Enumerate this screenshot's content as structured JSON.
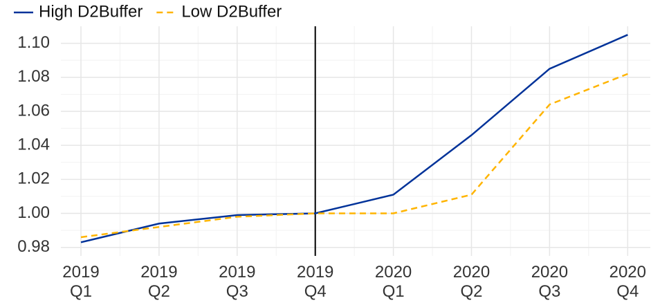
{
  "chart_data": {
    "type": "line",
    "categories": [
      "2019 Q1",
      "2019 Q2",
      "2019 Q3",
      "2019 Q4",
      "2020 Q1",
      "2020 Q2",
      "2020 Q3",
      "2020 Q4"
    ],
    "series": [
      {
        "name": "High D2Buffer",
        "color": "#003299",
        "dash": false,
        "values": [
          0.983,
          0.994,
          0.999,
          1.0,
          1.011,
          1.046,
          1.085,
          1.105
        ]
      },
      {
        "name": "Low D2Buffer",
        "color": "#ffb400",
        "dash": true,
        "values": [
          0.986,
          0.992,
          0.998,
          1.0,
          1.0,
          1.011,
          1.064,
          1.082
        ]
      }
    ],
    "ylim": [
      0.975,
      1.11
    ],
    "yticks": [
      0.98,
      {
        "value": 1.0,
        "label": "1.00"
      },
      1.02,
      1.04,
      1.06,
      1.08,
      {
        "value": 1.1,
        "label": "1.10"
      }
    ],
    "grid": true,
    "reference_line": {
      "category": "2019 Q4",
      "color": "#000000"
    },
    "legend": "top-left"
  }
}
